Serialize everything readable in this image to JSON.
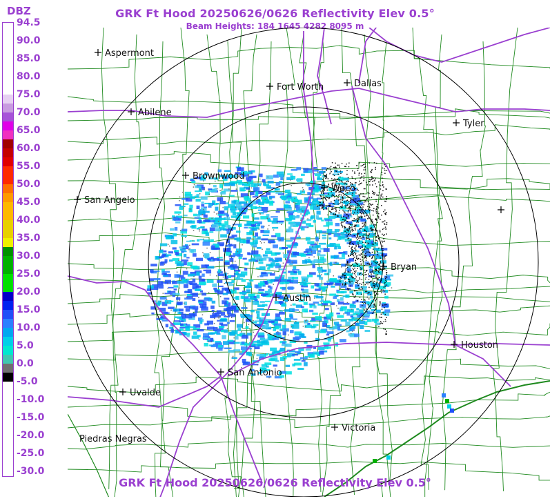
{
  "header": {
    "title": "GRK Ft Hood 20250626/0626 Reflectivity Elev 0.5°",
    "subtitle": "Beam Heights: 184 1645 4282 8095 m",
    "bottom_title": "GRK Ft Hood 20250626/0626 Reflectivity Elev 0.5°"
  },
  "legend": {
    "unit": "DBZ",
    "ticks": [
      "94.5",
      "90.0",
      "85.0",
      "80.0",
      "75.0",
      "70.0",
      "65.0",
      "60.0",
      "55.0",
      "50.0",
      "45.0",
      "40.0",
      "35.0",
      "30.0",
      "25.0",
      "20.0",
      "15.0",
      "10.0",
      "5.0",
      "0.0",
      "-5.0",
      "-10.0",
      "-15.0",
      "-20.0",
      "-25.0",
      "-30.0"
    ],
    "colors": [
      {
        "from": 94.5,
        "to": 75,
        "color": "#ffffff"
      },
      {
        "from": 75,
        "to": 72.5,
        "color": "#e6d0f2"
      },
      {
        "from": 72.5,
        "to": 70,
        "color": "#c89be0"
      },
      {
        "from": 70,
        "to": 67.5,
        "color": "#a652d8"
      },
      {
        "from": 67.5,
        "to": 65,
        "color": "#e000e8"
      },
      {
        "from": 65,
        "to": 62.5,
        "color": "#f030c0"
      },
      {
        "from": 62.5,
        "to": 60,
        "color": "#a00000"
      },
      {
        "from": 60,
        "to": 57.5,
        "color": "#c40000"
      },
      {
        "from": 57.5,
        "to": 55,
        "color": "#e00000"
      },
      {
        "from": 55,
        "to": 50,
        "color": "#ff2a00"
      },
      {
        "from": 50,
        "to": 47.5,
        "color": "#ff7000"
      },
      {
        "from": 47.5,
        "to": 45,
        "color": "#ff9a00"
      },
      {
        "from": 45,
        "to": 40,
        "color": "#ffb800"
      },
      {
        "from": 40,
        "to": 35,
        "color": "#e8d000"
      },
      {
        "from": 35,
        "to": 32.5,
        "color": "#f0f000"
      },
      {
        "from": 32.5,
        "to": 30,
        "color": "#009000"
      },
      {
        "from": 30,
        "to": 25,
        "color": "#00b000"
      },
      {
        "from": 25,
        "to": 20,
        "color": "#00e000"
      },
      {
        "from": 20,
        "to": 17.5,
        "color": "#0000c8"
      },
      {
        "from": 17.5,
        "to": 15,
        "color": "#0020f0"
      },
      {
        "from": 15,
        "to": 12.5,
        "color": "#2050f8"
      },
      {
        "from": 12.5,
        "to": 10,
        "color": "#2a80ff"
      },
      {
        "from": 10,
        "to": 7.5,
        "color": "#00a8f0"
      },
      {
        "from": 7.5,
        "to": 5,
        "color": "#00d0e8"
      },
      {
        "from": 5,
        "to": 2.5,
        "color": "#00e8d0"
      },
      {
        "from": 2.5,
        "to": 0,
        "color": "#40c8b0"
      },
      {
        "from": 0,
        "to": -2.5,
        "color": "#707070"
      },
      {
        "from": -2.5,
        "to": -5,
        "color": "#000000"
      },
      {
        "from": -5,
        "to": -30,
        "color": "#ffffff"
      }
    ]
  },
  "cities": [
    {
      "name": "Aspermont"
    },
    {
      "name": "Fort Worth"
    },
    {
      "name": "Dallas"
    },
    {
      "name": "Abilene"
    },
    {
      "name": "Tyler"
    },
    {
      "name": "Brownwood"
    },
    {
      "name": "Waco"
    },
    {
      "name": "San Angelo"
    },
    {
      "name": "Bryan"
    },
    {
      "name": "Austin"
    },
    {
      "name": "Houston"
    },
    {
      "name": "San Antonio"
    },
    {
      "name": "Uvalde"
    },
    {
      "name": "Victoria"
    },
    {
      "name": "Piedras Negras"
    },
    {
      "name": ""
    }
  ],
  "range_rings": 3,
  "colors": {
    "title": "#9a3fd0",
    "highway": "#9a3fd0",
    "county_lines": "#1f8a1f",
    "rings": "#000000"
  }
}
